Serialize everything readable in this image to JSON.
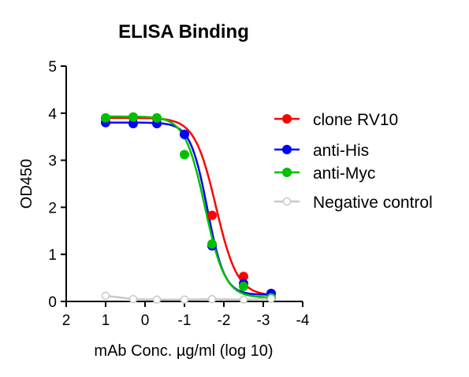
{
  "chart_data": {
    "type": "line",
    "title": "ELISA Binding",
    "xlabel": "mAb Conc. µg/ml (log 10)",
    "ylabel": "OD450",
    "xlim": [
      2,
      -4
    ],
    "ylim": [
      0,
      5
    ],
    "x_ticks": [
      2,
      1,
      0,
      -1,
      -2,
      -3,
      -4
    ],
    "x_tick_labels": [
      "2",
      "1",
      "0",
      "-1",
      "-2",
      "-3",
      "-4"
    ],
    "y_ticks": [
      0,
      1,
      2,
      3,
      4,
      5
    ],
    "y_tick_labels": [
      "0",
      "1",
      "2",
      "3",
      "4",
      "5"
    ],
    "grid": false,
    "legend_position": "right",
    "x": [
      1,
      0.3,
      -0.3,
      -1,
      -1.7,
      -2.5,
      -3.2
    ],
    "series": [
      {
        "name": "clone RV10",
        "color": "#ff0000",
        "values": [
          3.88,
          3.9,
          3.88,
          3.55,
          1.83,
          0.53,
          0.17
        ],
        "fit": {
          "top": 3.9,
          "bottom": 0.12,
          "ec50": -1.8,
          "slope": 1.6
        },
        "marker": "filled-circle"
      },
      {
        "name": "anti-His",
        "color": "#0000ff",
        "values": [
          3.8,
          3.78,
          3.78,
          3.55,
          1.18,
          0.38,
          0.17
        ],
        "fit": {
          "top": 3.8,
          "bottom": 0.14,
          "ec50": -1.58,
          "slope": 2.0
        },
        "marker": "filled-circle"
      },
      {
        "name": "anti-Myc",
        "color": "#00c000",
        "values": [
          3.9,
          3.92,
          3.9,
          3.12,
          1.22,
          0.32,
          0.08
        ],
        "fit": {
          "top": 3.93,
          "bottom": 0.08,
          "ec50": -1.52,
          "slope": 1.7
        },
        "marker": "filled-circle"
      },
      {
        "name": "Negative control",
        "color": "#c8c8c8",
        "values": [
          0.12,
          0.05,
          0.04,
          0.04,
          0.05,
          0.04,
          0.06
        ],
        "marker": "open-circle"
      }
    ]
  }
}
